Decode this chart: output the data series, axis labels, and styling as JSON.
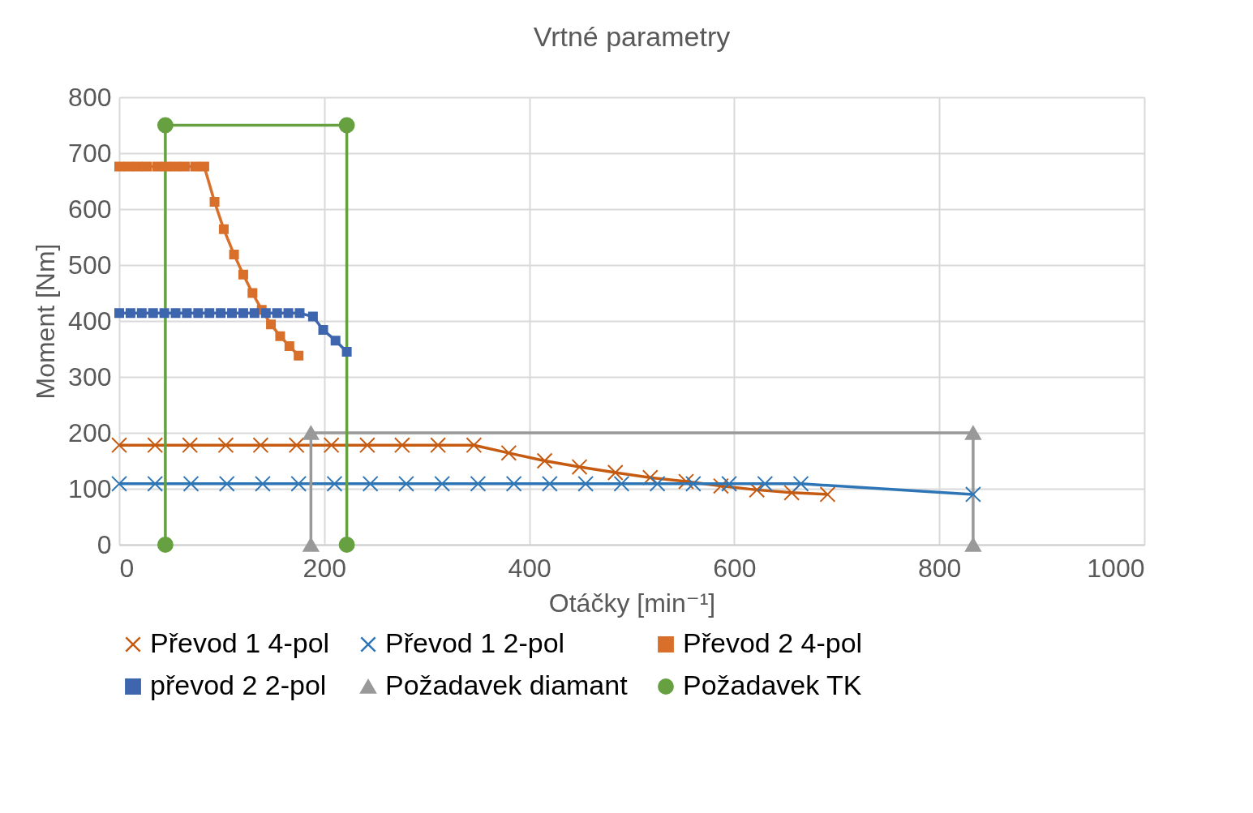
{
  "chart_data": {
    "type": "line",
    "title": "Vrtné parametry",
    "xlabel": "Otáčky [min⁻¹]",
    "ylabel": "Moment [Nm]",
    "xlim": [
      0,
      1000
    ],
    "xticks": [
      0,
      200,
      400,
      600,
      800,
      1000
    ],
    "ylim": [
      0,
      800
    ],
    "yticks": [
      0,
      100,
      200,
      300,
      400,
      500,
      600,
      700,
      800
    ],
    "grid": true,
    "legend": "bottom",
    "series": [
      {
        "name": "Převod 1 4-pol",
        "color": "#c55a11",
        "marker": "cross",
        "x": [
          0,
          35,
          69,
          104,
          138,
          173,
          207,
          242,
          276,
          311,
          346,
          380,
          415,
          449,
          484,
          518,
          553,
          587,
          622,
          656,
          691
        ],
        "values": [
          178,
          178,
          178,
          178,
          178,
          178,
          178,
          178,
          178,
          178,
          178,
          164,
          150,
          139,
          129,
          120,
          113,
          105,
          98,
          93,
          90
        ]
      },
      {
        "name": "Převod 1 2-pol",
        "color": "#2e75b6",
        "marker": "cross",
        "x": [
          0,
          35,
          70,
          105,
          140,
          175,
          210,
          245,
          280,
          315,
          350,
          385,
          420,
          455,
          490,
          525,
          560,
          595,
          630,
          665,
          833
        ],
        "values": [
          109,
          109,
          109,
          109,
          109,
          109,
          109,
          109,
          109,
          109,
          109,
          109,
          109,
          109,
          109,
          109,
          109,
          109,
          109,
          109,
          90
        ]
      },
      {
        "name": "Převod 2 4-pol",
        "color": "#d86f2a",
        "marker": "square",
        "x": [
          0,
          9,
          18,
          27,
          37,
          46,
          55,
          64,
          74,
          83,
          93,
          102,
          112,
          121,
          130,
          139,
          148,
          157,
          166,
          175
        ],
        "values": [
          676,
          676,
          676,
          676,
          676,
          676,
          676,
          676,
          676,
          676,
          613,
          564,
          519,
          483,
          450,
          420,
          394,
          373,
          355,
          338
        ]
      },
      {
        "name": "převod 2 2-pol",
        "color": "#3d66ae",
        "marker": "square",
        "x": [
          0,
          11,
          22,
          33,
          44,
          55,
          66,
          77,
          88,
          99,
          110,
          121,
          132,
          143,
          154,
          165,
          176,
          189,
          199,
          211,
          222
        ],
        "values": [
          414,
          414,
          414,
          414,
          414,
          414,
          414,
          414,
          414,
          414,
          414,
          414,
          414,
          414,
          414,
          414,
          414,
          408,
          384,
          365,
          345
        ]
      },
      {
        "name": "Požadavek diamant",
        "color": "#999999",
        "marker": "triangle",
        "x": [
          187,
          187,
          833,
          833
        ],
        "values": [
          0,
          200,
          200,
          0
        ]
      },
      {
        "name": "Požadavek TK",
        "color": "#66a040",
        "marker": "circle",
        "x": [
          45,
          45,
          222,
          222
        ],
        "values": [
          0,
          750,
          750,
          0
        ]
      }
    ]
  }
}
